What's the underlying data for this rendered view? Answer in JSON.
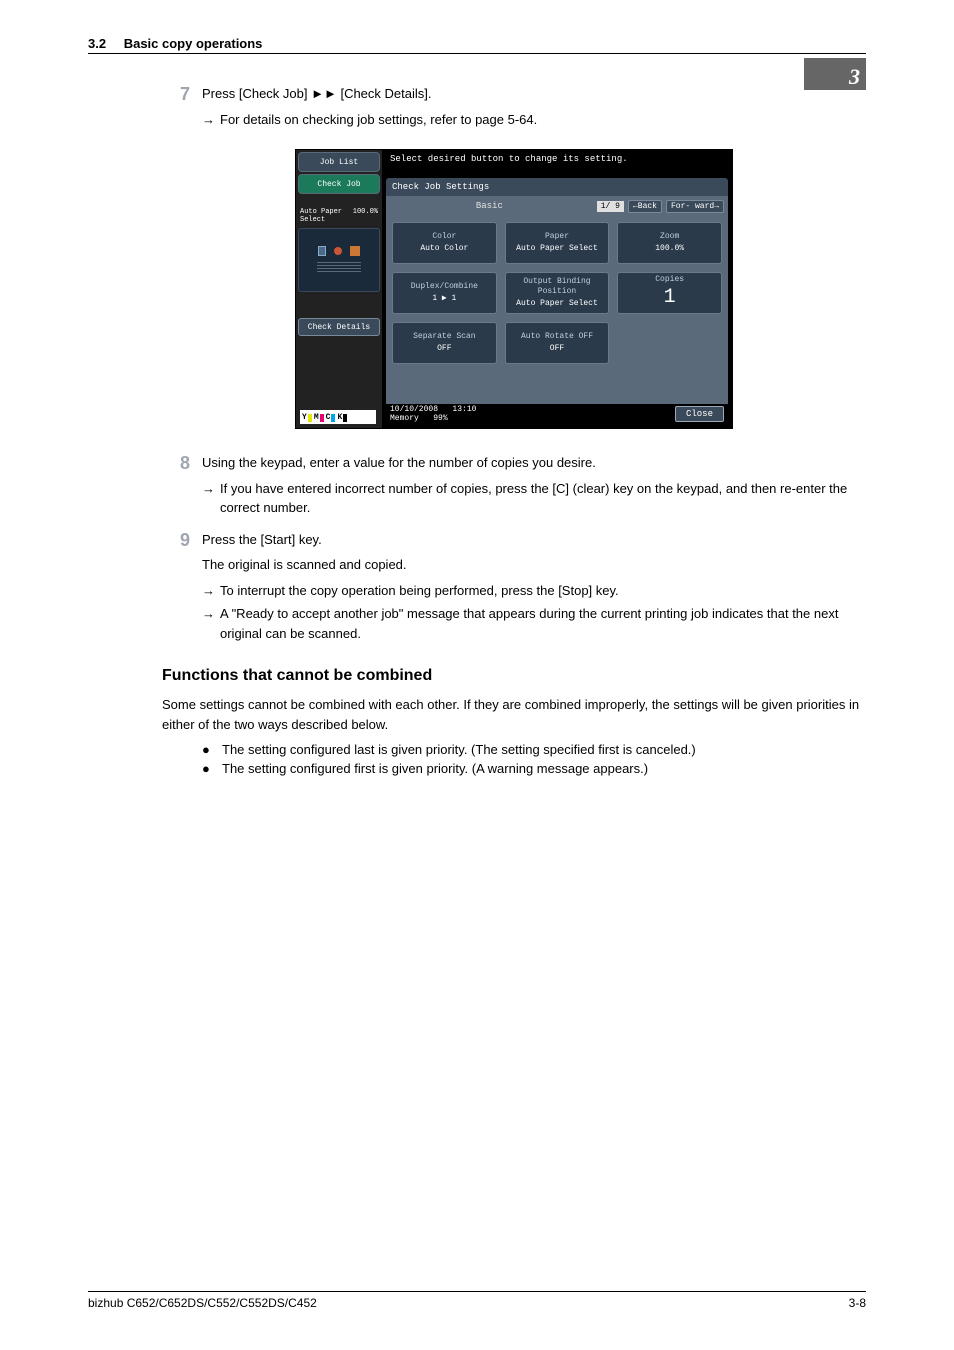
{
  "header": {
    "section_number": "3.2",
    "section_title": "Basic copy operations",
    "chapter_number": "3"
  },
  "steps": {
    "step7": {
      "num": "7",
      "text_a": "Press [Check Job] ",
      "text_b": " [Check Details].",
      "sub1": "For details on checking job settings, refer to page 5-64."
    },
    "step8": {
      "num": "8",
      "text": "Using the keypad, enter a value for the number of copies you desire.",
      "sub1": "If you have entered incorrect number of copies, press the [C] (clear) key on the keypad, and then re-enter the correct number."
    },
    "step9": {
      "num": "9",
      "text": "Press the [Start] key.",
      "para": "The original is scanned and copied.",
      "sub1": "To interrupt the copy operation being performed, press the [Stop] key.",
      "sub2": "A \"Ready to accept another job\" message that appears during the current printing job indicates that the next original can be scanned."
    }
  },
  "section2": {
    "heading": "Functions that cannot be combined",
    "para": "Some settings cannot be combined with each other. If they are combined improperly, the settings will be given priorities in either of the two ways described below.",
    "bullet1": "The setting configured last is given priority. (The setting specified first is canceled.)",
    "bullet2": "The setting configured first is given priority. (A warning message appears.)"
  },
  "footer": {
    "left": "bizhub C652/C652DS/C552/C552DS/C452",
    "right": "3-8"
  },
  "screenshot": {
    "left": {
      "tab_joblist": "Job List",
      "tab_checkjob": "Check Job",
      "preview_label_l": "Auto Paper Select",
      "preview_label_r": "100.0%",
      "check_details": "Check Details",
      "toner": {
        "y": "Y",
        "m": "M",
        "c": "C",
        "k": "K"
      }
    },
    "right": {
      "instruction": "Select desired button to change its setting.",
      "title": "Check Job Settings",
      "tab_basic": "Basic",
      "pager": "1/ 9",
      "back": "Back",
      "forward": "For- ward",
      "settings": {
        "color": {
          "label": "Color",
          "value": "Auto Color"
        },
        "paper": {
          "label": "Paper",
          "value": "Auto Paper Select"
        },
        "zoom": {
          "label": "Zoom",
          "value": "100.0%"
        },
        "duplex": {
          "label": "Duplex/Combine",
          "value": "1 ▶ 1"
        },
        "output": {
          "label": "Output Binding Position",
          "value": "Auto Paper Select"
        },
        "copies": {
          "label": "Copies",
          "value": "1"
        },
        "sepscan": {
          "label": "Separate Scan",
          "value": "OFF"
        },
        "rotate": {
          "label": "Auto Rotate OFF",
          "value": "OFF"
        }
      },
      "bottom": {
        "date": "10/10/2008",
        "time": "13:10",
        "mem_l": "Memory",
        "mem_v": "99%",
        "close": "Close"
      }
    }
  }
}
